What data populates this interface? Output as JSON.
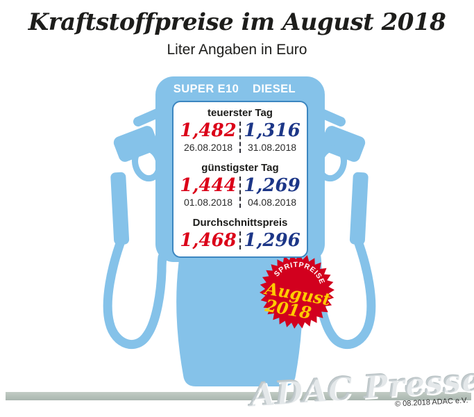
{
  "title": "Kraftstoffpreise im August 2018",
  "subtitle": "Liter Angaben in Euro",
  "pump": {
    "fuel_types": [
      "SUPER E10",
      "DIESEL"
    ],
    "sections": [
      {
        "label": "teuerster Tag",
        "super_e10": {
          "price": "1,482",
          "date": "26.08.2018"
        },
        "diesel": {
          "price": "1,316",
          "date": "31.08.2018"
        }
      },
      {
        "label": "günstigster Tag",
        "super_e10": {
          "price": "1,444",
          "date": "01.08.2018"
        },
        "diesel": {
          "price": "1,269",
          "date": "04.08.2018"
        }
      },
      {
        "label": "Durchschnittspreis",
        "super_e10": {
          "price": "1,468"
        },
        "diesel": {
          "price": "1,296"
        }
      }
    ]
  },
  "badge": {
    "top_text": "SPRITPREISE",
    "month": "August",
    "year": "2018"
  },
  "footer": {
    "watermark": "ADAC Presse",
    "copyright": "© 08.2018 ADAC e.V."
  },
  "colors": {
    "pump_blue": "#85c2e9",
    "panel_border": "#3c86c0",
    "accent_red": "#db0018",
    "accent_navy": "#1c3687",
    "badge_red": "#d2001e",
    "badge_yellow": "#ffcc00",
    "bar_gray": "#b5bfb9"
  },
  "chart_data": {
    "type": "table",
    "title": "Kraftstoffpreise im August 2018",
    "subtitle": "Liter Angaben in Euro",
    "unit": "Euro pro Liter",
    "columns": [
      "SUPER E10",
      "DIESEL"
    ],
    "rows": [
      {
        "label": "teuerster Tag",
        "super_e10": 1.482,
        "super_e10_date": "26.08.2018",
        "diesel": 1.316,
        "diesel_date": "31.08.2018"
      },
      {
        "label": "günstigster Tag",
        "super_e10": 1.444,
        "super_e10_date": "01.08.2018",
        "diesel": 1.269,
        "diesel_date": "04.08.2018"
      },
      {
        "label": "Durchschnittspreis",
        "super_e10": 1.468,
        "diesel": 1.296
      }
    ]
  }
}
